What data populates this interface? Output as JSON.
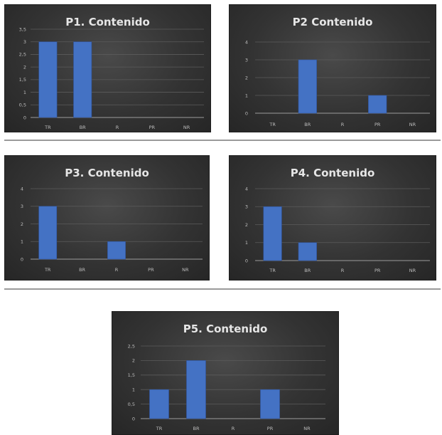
{
  "colors": {
    "bar": "#4472c4",
    "bar_edge": "#2f55a0"
  },
  "chart_data": [
    {
      "type": "bar",
      "title": "P1. Contenido",
      "categories": [
        "TR",
        "BR",
        "R",
        "PR",
        "NR"
      ],
      "values": [
        3,
        3,
        0,
        0,
        0
      ],
      "ylim": [
        0,
        3.5
      ],
      "yticks": [
        "0",
        "0,5",
        "1",
        "1,5",
        "2",
        "2,5",
        "3",
        "3,5"
      ],
      "grid": true
    },
    {
      "type": "bar",
      "title": "P2 Contenido",
      "categories": [
        "TR",
        "BR",
        "R",
        "PR",
        "NR"
      ],
      "values": [
        0,
        3,
        0,
        1,
        0
      ],
      "ylim": [
        0,
        4
      ],
      "yticks": [
        "0",
        "1",
        "2",
        "3",
        "4"
      ],
      "grid": true
    },
    {
      "type": "bar",
      "title": "P3. Contenido",
      "categories": [
        "TR",
        "BR",
        "R",
        "PR",
        "NR"
      ],
      "values": [
        3,
        0,
        1,
        0,
        0
      ],
      "ylim": [
        0,
        4
      ],
      "yticks": [
        "0",
        "1",
        "2",
        "3",
        "4"
      ],
      "grid": true
    },
    {
      "type": "bar",
      "title": "P4. Contenido",
      "categories": [
        "TR",
        "BR",
        "R",
        "PR",
        "NR"
      ],
      "values": [
        3,
        1,
        0,
        0,
        0
      ],
      "ylim": [
        0,
        4
      ],
      "yticks": [
        "0",
        "1",
        "2",
        "3",
        "4"
      ],
      "grid": true
    },
    {
      "type": "bar",
      "title": "P5. Contenido",
      "categories": [
        "TR",
        "BR",
        "R",
        "PR",
        "NR"
      ],
      "values": [
        1,
        2,
        0,
        1,
        0
      ],
      "ylim": [
        0,
        2.5
      ],
      "yticks": [
        "0",
        "0,5",
        "1",
        "1,5",
        "2",
        "2,5"
      ],
      "grid": true
    }
  ]
}
